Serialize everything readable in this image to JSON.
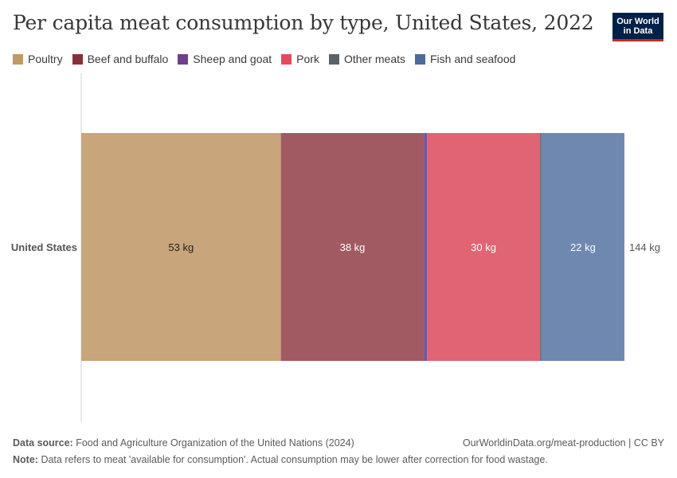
{
  "header": {
    "title": "Per capita meat consumption by type, United States, 2022",
    "logo_line1": "Our World",
    "logo_line2": "in Data"
  },
  "legend": [
    {
      "label": "Poultry",
      "color": "#c09a64"
    },
    {
      "label": "Beef and buffalo",
      "color": "#883039"
    },
    {
      "label": "Sheep and goat",
      "color": "#6d3e91"
    },
    {
      "label": "Pork",
      "color": "#e04d5e"
    },
    {
      "label": "Other meats",
      "color": "#5b6168"
    },
    {
      "label": "Fish and seafood",
      "color": "#4c6a9c"
    }
  ],
  "chart_data": {
    "type": "bar",
    "orientation": "horizontal",
    "stacked": true,
    "categories": [
      "United States"
    ],
    "unit": "kg",
    "series": [
      {
        "name": "Poultry",
        "values": [
          53
        ],
        "color": "#c8a57a",
        "label": "53 kg",
        "label_color": "#222222"
      },
      {
        "name": "Beef and buffalo",
        "values": [
          38
        ],
        "color": "#a15a61",
        "label": "38 kg",
        "label_color": "#ffffff"
      },
      {
        "name": "Sheep and goat",
        "values": [
          0.8
        ],
        "color": "#7d4fa0",
        "label": "",
        "label_color": "#ffffff"
      },
      {
        "name": "Pork",
        "values": [
          30
        ],
        "color": "#e06473",
        "label": "30 kg",
        "label_color": "#ffffff"
      },
      {
        "name": "Other meats",
        "values": [
          0.4
        ],
        "color": "#6b7077",
        "label": "",
        "label_color": "#ffffff"
      },
      {
        "name": "Fish and seafood",
        "values": [
          22
        ],
        "color": "#6f88b0",
        "label": "22 kg",
        "label_color": "#ffffff"
      }
    ],
    "totals": [
      144
    ],
    "total_labels": [
      "144 kg"
    ],
    "xlim": [
      0,
      144
    ]
  },
  "footer": {
    "source_label": "Data source:",
    "source_text": "Food and Agriculture Organization of the United Nations (2024)",
    "url_text": "OurWorldinData.org/meat-production | CC BY",
    "note_label": "Note:",
    "note_text": "Data refers to meat 'available for consumption'. Actual consumption may be lower after correction for food wastage."
  }
}
